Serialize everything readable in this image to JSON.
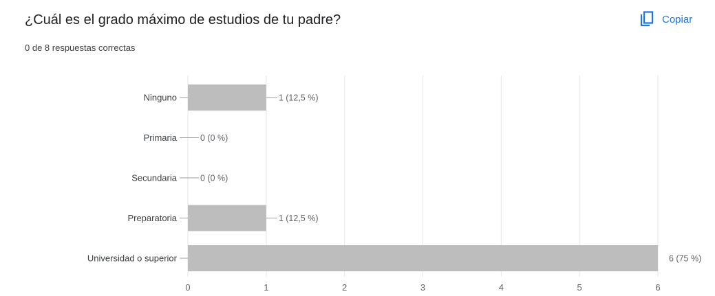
{
  "question": {
    "title": "¿Cuál es el grado máximo de estudios de tu padre?",
    "summary": "0 de 8 respuestas correctas"
  },
  "toolbar": {
    "copy_label": "Copiar",
    "copy_icon": "copy-icon",
    "accent_color": "#1a73e8"
  },
  "chart_data": {
    "type": "bar",
    "orientation": "horizontal",
    "categories": [
      "Ninguno",
      "Primaria",
      "Secundaria",
      "Preparatoria",
      "Universidad o superior"
    ],
    "values": [
      1,
      0,
      0,
      1,
      6
    ],
    "value_labels": [
      "1 (12,5 %)",
      "0 (0 %)",
      "0 (0 %)",
      "1 (12,5 %)",
      "6 (75 %)"
    ],
    "xlim": [
      0,
      6
    ],
    "xticks": [
      "0",
      "1",
      "2",
      "3",
      "4",
      "5",
      "6"
    ],
    "grid": true,
    "bar_color": "#bdbdbd"
  }
}
